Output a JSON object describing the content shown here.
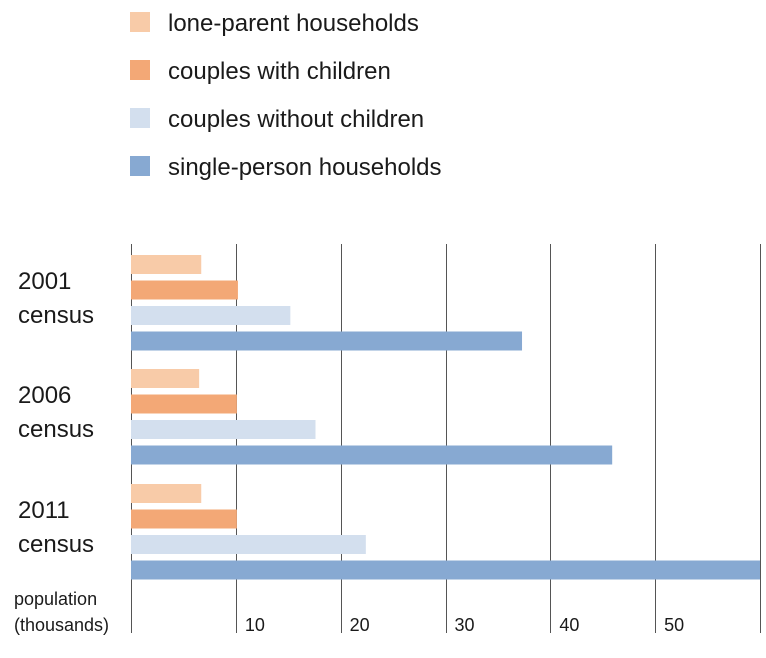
{
  "colors": {
    "lone_parent": "#f8cba8",
    "couples_with_children": "#f3a876",
    "couples_without_children": "#d3dfee",
    "single_person": "#87a9d2",
    "grid": "#555555",
    "text": "#1a1a1a"
  },
  "chart_data": {
    "type": "bar",
    "orientation": "horizontal",
    "title": "",
    "xlabel": [
      "population",
      "(thousands)"
    ],
    "ylabel": "",
    "xlim": [
      0,
      60
    ],
    "x_ticks": [
      {
        "value": 10,
        "label": "10"
      },
      {
        "value": 20,
        "label": "20"
      },
      {
        "value": 30,
        "label": "30"
      },
      {
        "value": 40,
        "label": "40"
      },
      {
        "value": 50,
        "label": "50"
      }
    ],
    "grid": true,
    "legend_position": "top",
    "categories": [
      {
        "line1": "2001",
        "line2": "census"
      },
      {
        "line1": "2006",
        "line2": "census"
      },
      {
        "line1": "2011",
        "line2": "census"
      }
    ],
    "series": [
      {
        "name": "lone-parent households",
        "color_key": "lone_parent",
        "values": [
          6.7,
          6.5,
          6.7
        ]
      },
      {
        "name": "couples with children",
        "color_key": "couples_with_children",
        "values": [
          10.2,
          10.1,
          10.1
        ]
      },
      {
        "name": "couples without children",
        "color_key": "couples_without_children",
        "values": [
          15.2,
          17.6,
          22.4
        ]
      },
      {
        "name": "single-person households",
        "color_key": "single_person",
        "values": [
          37.3,
          45.9,
          60
        ]
      }
    ]
  }
}
